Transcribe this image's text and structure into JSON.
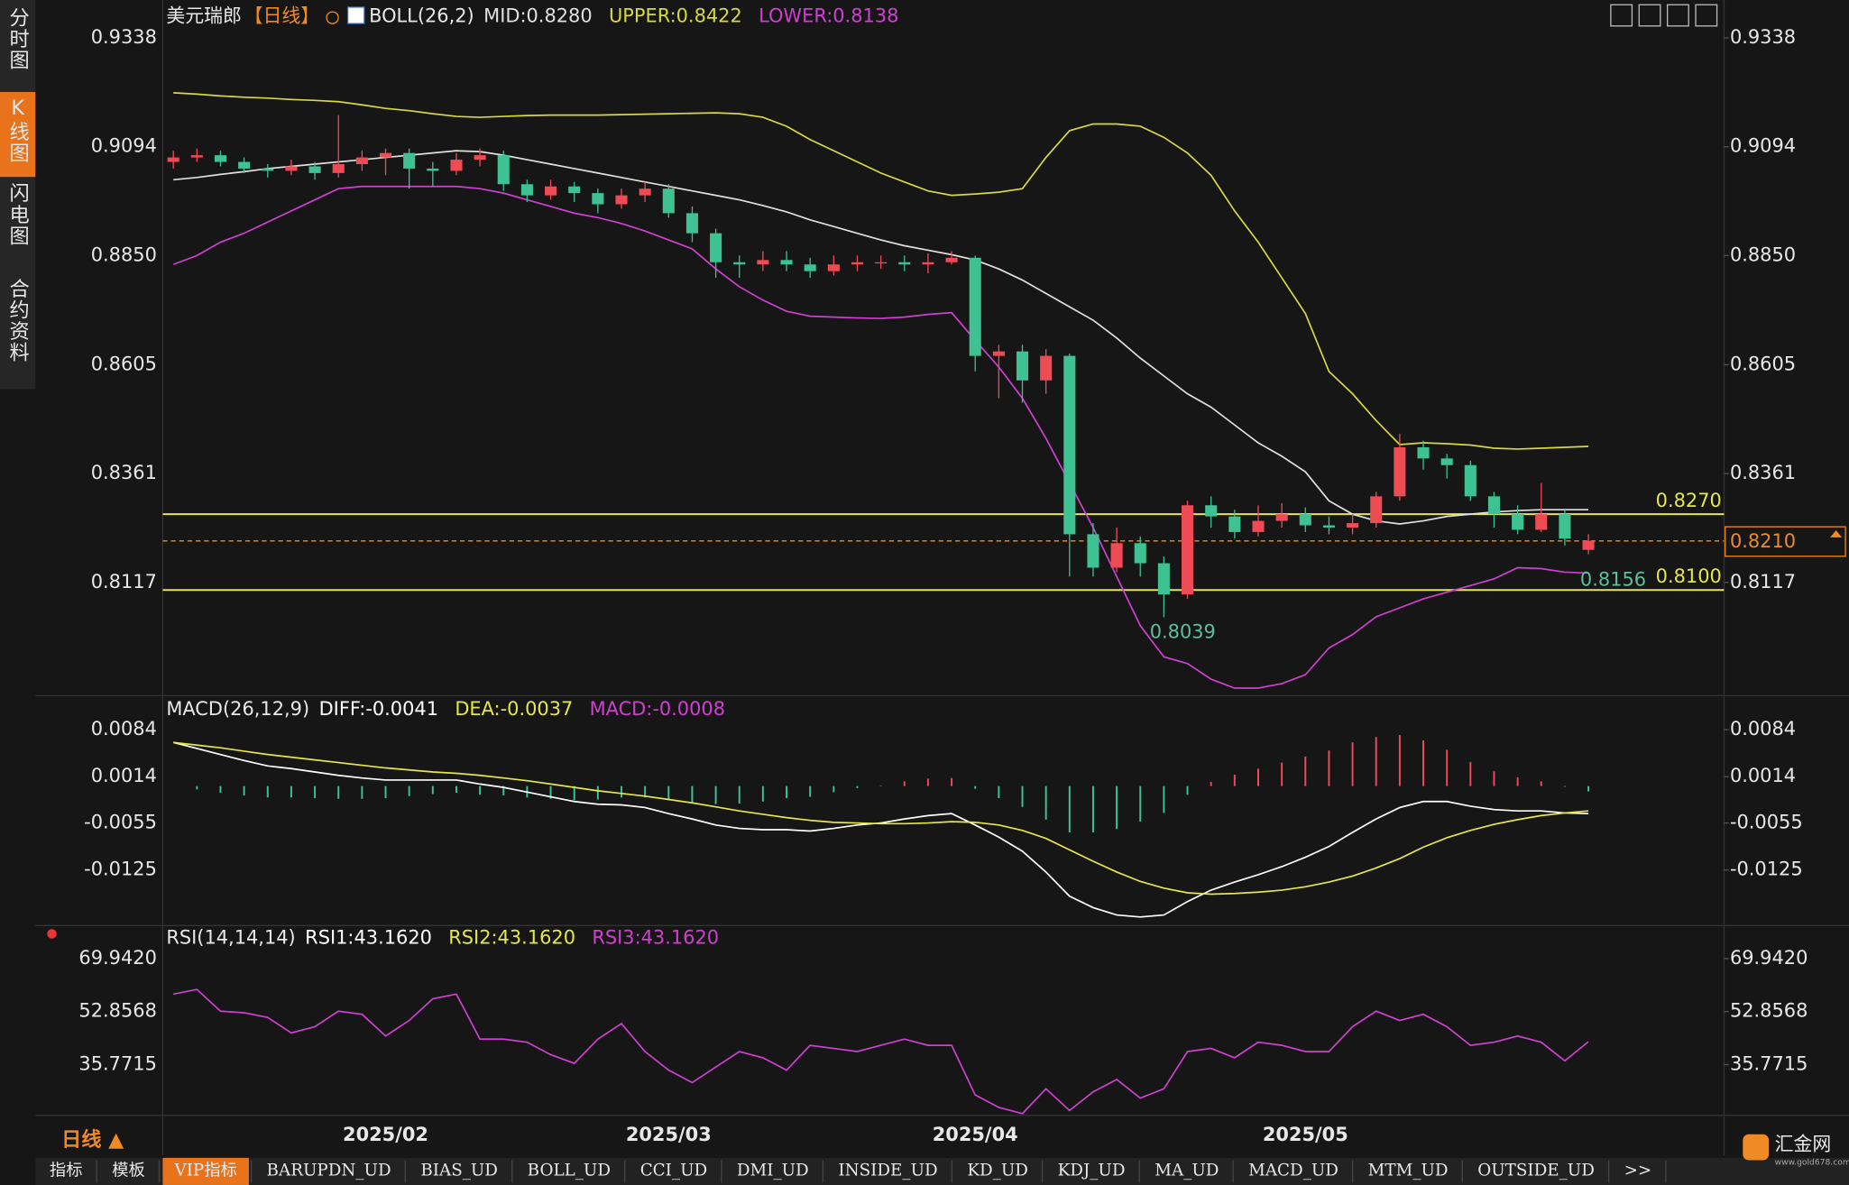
{
  "sidebar": {
    "tabs": [
      "分时图",
      "K线图",
      "闪电图",
      "合约资料"
    ]
  },
  "toolbar": {
    "period": "日线 ▲",
    "tabs": [
      "指标",
      "模板",
      "VIP指标",
      "BARUPDN_UD",
      "BIAS_UD",
      "BOLL_UD",
      "CCI_UD",
      "DMI_UD",
      "INSIDE_UD",
      "KD_UD",
      "KDJ_UD",
      "MA_UD",
      "MACD_UD",
      "MTM_UD",
      "OUTSIDE_UD",
      ">>"
    ]
  },
  "logo": {
    "name": "汇金网",
    "url": "www.gold678.com"
  },
  "chart_data": [
    {
      "type": "candlestick",
      "title": "美元瑞郎",
      "period": "【日线】",
      "indicator": "BOLL(26,2)",
      "categories": [
        null,
        null,
        null,
        null,
        null,
        null,
        null,
        null,
        null,
        "2025/02",
        null,
        null,
        null,
        null,
        null,
        null,
        null,
        null,
        null,
        null,
        null,
        "2025/03",
        null,
        null,
        null,
        null,
        null,
        null,
        null,
        null,
        null,
        null,
        null,
        null,
        "2025/04",
        null,
        null,
        null,
        null,
        null,
        null,
        null,
        null,
        null,
        null,
        null,
        null,
        null,
        "2025/05",
        null,
        null,
        null,
        null,
        null,
        null,
        null,
        null,
        null,
        null,
        null,
        null
      ],
      "open": [
        0.906,
        0.907,
        0.9075,
        0.906,
        0.9045,
        0.904,
        0.905,
        0.9035,
        0.9055,
        0.907,
        0.908,
        0.9045,
        0.904,
        0.9065,
        0.9075,
        0.901,
        0.8985,
        0.9005,
        0.899,
        0.8965,
        0.8985,
        0.9,
        0.8945,
        0.89,
        0.8835,
        0.883,
        0.884,
        0.883,
        0.8815,
        0.883,
        0.8835,
        0.8835,
        0.883,
        0.8835,
        0.8845,
        0.8625,
        0.8635,
        0.857,
        0.8625,
        0.8225,
        0.815,
        0.8205,
        0.816,
        0.809,
        0.829,
        0.8265,
        0.823,
        0.8255,
        0.827,
        0.8245,
        0.824,
        0.825,
        0.831,
        0.842,
        0.8395,
        0.838,
        0.831,
        0.827,
        0.8235,
        0.827,
        0.819
      ],
      "high": [
        0.9085,
        0.909,
        0.9085,
        0.907,
        0.9055,
        0.9065,
        0.906,
        0.9165,
        0.9085,
        0.909,
        0.909,
        0.906,
        0.908,
        0.909,
        0.9085,
        0.902,
        0.902,
        0.9015,
        0.9,
        0.9,
        0.9015,
        0.901,
        0.896,
        0.891,
        0.885,
        0.886,
        0.886,
        0.8845,
        0.885,
        0.885,
        0.885,
        0.885,
        0.8855,
        0.886,
        0.885,
        0.865,
        0.865,
        0.864,
        0.863,
        0.825,
        0.824,
        0.822,
        0.8175,
        0.83,
        0.831,
        0.828,
        0.829,
        0.8295,
        0.8285,
        0.8265,
        0.827,
        0.832,
        0.845,
        0.8435,
        0.8405,
        0.839,
        0.832,
        0.829,
        0.834,
        0.828,
        0.8225
      ],
      "low": [
        0.9045,
        0.906,
        0.905,
        0.9035,
        0.9025,
        0.903,
        0.902,
        0.9025,
        0.904,
        0.903,
        0.9,
        0.9005,
        0.903,
        0.905,
        0.8995,
        0.897,
        0.8975,
        0.897,
        0.8945,
        0.8955,
        0.897,
        0.8935,
        0.888,
        0.88,
        0.88,
        0.8815,
        0.8815,
        0.88,
        0.8805,
        0.8815,
        0.882,
        0.8815,
        0.881,
        0.883,
        0.859,
        0.853,
        0.852,
        0.854,
        0.813,
        0.813,
        0.814,
        0.813,
        0.8039,
        0.808,
        0.824,
        0.8215,
        0.822,
        0.824,
        0.823,
        0.8225,
        0.8225,
        0.824,
        0.83,
        0.837,
        0.835,
        0.83,
        0.824,
        0.8225,
        0.823,
        0.82,
        0.818
      ],
      "close": [
        0.907,
        0.9075,
        0.906,
        0.9045,
        0.904,
        0.905,
        0.9035,
        0.9055,
        0.907,
        0.908,
        0.9045,
        0.904,
        0.9065,
        0.9075,
        0.901,
        0.8985,
        0.9005,
        0.899,
        0.8965,
        0.8985,
        0.9,
        0.8945,
        0.89,
        0.8835,
        0.883,
        0.884,
        0.883,
        0.8815,
        0.883,
        0.8835,
        0.8835,
        0.883,
        0.8835,
        0.8845,
        0.8625,
        0.8635,
        0.857,
        0.8625,
        0.8225,
        0.815,
        0.8205,
        0.816,
        0.809,
        0.829,
        0.8265,
        0.823,
        0.8255,
        0.827,
        0.8245,
        0.824,
        0.825,
        0.831,
        0.842,
        0.8395,
        0.838,
        0.831,
        0.827,
        0.8235,
        0.827,
        0.8215,
        0.821
      ],
      "up_color": "#ee4b55",
      "down_color": "#3ec193",
      "series": [
        {
          "name": "MID:0.8280",
          "color": "#e0e0e0",
          "values": [
            0.902,
            0.9025,
            0.9032,
            0.9038,
            0.9045,
            0.905,
            0.9055,
            0.906,
            0.9065,
            0.907,
            0.9075,
            0.908,
            0.9085,
            0.9083,
            0.9075,
            0.9065,
            0.9055,
            0.9045,
            0.9035,
            0.9025,
            0.9015,
            0.9005,
            0.8995,
            0.8985,
            0.8975,
            0.8962,
            0.8948,
            0.893,
            0.8915,
            0.89,
            0.8885,
            0.8872,
            0.8862,
            0.8852,
            0.884,
            0.882,
            0.8795,
            0.8765,
            0.8735,
            0.8705,
            0.8665,
            0.862,
            0.858,
            0.854,
            0.851,
            0.847,
            0.843,
            0.84,
            0.8365,
            0.83,
            0.827,
            0.8255,
            0.8248,
            0.8255,
            0.8265,
            0.827,
            0.8275,
            0.8278,
            0.828,
            0.828,
            0.828
          ]
        },
        {
          "name": "UPPER:0.8422",
          "color": "#d8d840",
          "values": [
            0.9215,
            0.9212,
            0.9208,
            0.9205,
            0.9203,
            0.92,
            0.9198,
            0.9195,
            0.9188,
            0.918,
            0.9175,
            0.9168,
            0.9162,
            0.916,
            0.9162,
            0.9164,
            0.9165,
            0.9165,
            0.9165,
            0.9166,
            0.9167,
            0.9168,
            0.9169,
            0.917,
            0.9168,
            0.916,
            0.914,
            0.911,
            0.9085,
            0.906,
            0.9035,
            0.9015,
            0.8995,
            0.8985,
            0.8988,
            0.8992,
            0.9,
            0.907,
            0.913,
            0.9145,
            0.9145,
            0.914,
            0.9115,
            0.908,
            0.903,
            0.895,
            0.888,
            0.88,
            0.872,
            0.859,
            0.854,
            0.848,
            0.8426,
            0.843,
            0.8428,
            0.8425,
            0.8418,
            0.8416,
            0.8418,
            0.842,
            0.8422
          ]
        },
        {
          "name": "LOWER:0.8138",
          "color": "#d040d0",
          "values": [
            0.883,
            0.885,
            0.888,
            0.89,
            0.8925,
            0.895,
            0.8975,
            0.9,
            0.9005,
            0.9005,
            0.9005,
            0.9005,
            0.9005,
            0.9,
            0.899,
            0.8975,
            0.896,
            0.8945,
            0.8935,
            0.8922,
            0.8905,
            0.8885,
            0.8865,
            0.882,
            0.878,
            0.875,
            0.8725,
            0.8714,
            0.8712,
            0.871,
            0.8709,
            0.8712,
            0.8718,
            0.8722,
            0.866,
            0.86,
            0.853,
            0.844,
            0.834,
            0.824,
            0.813,
            0.802,
            0.795,
            0.7935,
            0.79,
            0.788,
            0.788,
            0.789,
            0.791,
            0.797,
            0.8,
            0.804,
            0.806,
            0.808,
            0.8095,
            0.811,
            0.8125,
            0.815,
            0.8148,
            0.814,
            0.8138
          ]
        }
      ],
      "ylim": [
        0.7863,
        0.9423
      ],
      "yticks": [
        0.9338,
        0.9094,
        {
          "value": 0.885,
          "label": "0.8850"
        },
        0.8605,
        0.8361,
        0.8117
      ],
      "levels": [
        {
          "value": 0.827,
          "label": "0.8270"
        },
        {
          "value": 0.81,
          "label": "0.8100"
        }
      ],
      "level_color": "#e6e64a",
      "last_price": {
        "value": 0.821,
        "label": "0.8210"
      },
      "last_color": "#f08a24",
      "annotations": [
        0.8039,
        0.8156
      ],
      "annotation_color": "#5dbf9c"
    },
    {
      "type": "macd",
      "indicator": "MACD(26,12,9)",
      "up_color": "#ee4b55",
      "down_color": "#3ec193",
      "series": [
        {
          "name": "DIFF:-0.0041",
          "color": "#ffffff",
          "values": [
            0.0065,
            0.0056,
            0.0047,
            0.0038,
            0.003,
            0.0026,
            0.0021,
            0.0016,
            0.0012,
            0.0009,
            0.0009,
            0.0009,
            0.0009,
            0.0003,
            -0.0002,
            -0.0009,
            -0.0016,
            -0.0023,
            -0.0027,
            -0.0028,
            -0.0032,
            -0.0041,
            -0.0049,
            -0.0058,
            -0.0063,
            -0.0065,
            -0.0065,
            -0.0067,
            -0.0063,
            -0.0058,
            -0.0055,
            -0.0049,
            -0.0044,
            -0.0041,
            -0.0058,
            -0.0076,
            -0.0097,
            -0.0128,
            -0.0164,
            -0.0181,
            -0.0192,
            -0.0195,
            -0.0192,
            -0.0172,
            -0.0155,
            -0.0143,
            -0.0132,
            -0.012,
            -0.0106,
            -0.009,
            -0.0069,
            -0.0049,
            -0.0032,
            -0.0023,
            -0.0023,
            -0.003,
            -0.0035,
            -0.0037,
            -0.0037,
            -0.004,
            -0.0041
          ]
        },
        {
          "name": "DEA:-0.0037",
          "color": "#e6e64a",
          "values": [
            0.0065,
            0.0061,
            0.0057,
            0.0052,
            0.0047,
            0.0043,
            0.0039,
            0.0035,
            0.0031,
            0.0027,
            0.0024,
            0.0021,
            0.0019,
            0.0016,
            0.0012,
            0.0008,
            0.0003,
            -0.0002,
            -0.0007,
            -0.0011,
            -0.0015,
            -0.002,
            -0.0025,
            -0.0031,
            -0.0037,
            -0.0042,
            -0.0047,
            -0.0051,
            -0.0054,
            -0.0055,
            -0.0056,
            -0.0056,
            -0.0055,
            -0.0053,
            -0.0054,
            -0.0058,
            -0.0066,
            -0.0078,
            -0.0095,
            -0.0112,
            -0.0128,
            -0.0142,
            -0.0152,
            -0.0159,
            -0.0161,
            -0.016,
            -0.0158,
            -0.0155,
            -0.015,
            -0.0143,
            -0.0134,
            -0.0122,
            -0.0108,
            -0.0091,
            -0.0077,
            -0.0066,
            -0.0057,
            -0.005,
            -0.0044,
            -0.004,
            -0.0037
          ]
        },
        {
          "name": "MACD:-0.0008",
          "color": "#d040d0",
          "bar": true,
          "values": [
            0,
            -0.0005,
            -0.001,
            -0.0014,
            -0.0017,
            -0.0017,
            -0.0018,
            -0.0019,
            -0.0019,
            -0.0018,
            -0.0015,
            -0.0012,
            -0.001,
            -0.0013,
            -0.0014,
            -0.0017,
            -0.0019,
            -0.0021,
            -0.002,
            -0.0017,
            -0.0017,
            -0.0021,
            -0.0024,
            -0.0027,
            -0.0026,
            -0.0023,
            -0.0018,
            -0.0016,
            -0.0009,
            -0.0003,
            0.0001,
            0.0007,
            0.0011,
            0.0012,
            -0.0004,
            -0.0018,
            -0.0031,
            -0.005,
            -0.0069,
            -0.0069,
            -0.0064,
            -0.0053,
            -0.004,
            -0.0013,
            0.0006,
            0.0017,
            0.0026,
            0.0035,
            0.0044,
            0.0053,
            0.0065,
            0.0073,
            0.0076,
            0.0068,
            0.0054,
            0.0036,
            0.0022,
            0.0013,
            0.0007,
            -0.0001,
            -0.0008
          ]
        }
      ],
      "ylim": [
        -0.0199,
        0.0096
      ],
      "yticks": [
        0.0084,
        0.0014,
        -0.0055,
        -0.0125
      ]
    },
    {
      "type": "line",
      "indicator": "RSI(14,14,14)",
      "series": [
        {
          "name": "RSI1:43.1620",
          "color": "#ffffff"
        },
        {
          "name": "RSI2:43.1620",
          "color": "#e6e64a"
        },
        {
          "name": "RSI3:43.1620",
          "color": "#d040d0",
          "values": [
            58.5,
            60,
            53,
            52.5,
            51,
            46,
            48,
            53,
            52,
            45,
            50,
            57,
            58.5,
            44,
            44,
            43,
            39,
            36.2,
            44,
            49,
            40,
            34,
            30,
            35,
            40,
            38,
            34,
            42,
            41,
            40,
            42,
            44,
            42,
            42,
            26,
            22,
            20,
            28,
            21,
            27,
            31,
            25,
            28,
            40,
            41,
            38,
            43,
            42,
            40,
            40,
            48,
            53,
            50,
            52,
            48,
            42,
            43,
            45,
            43,
            37,
            43.162
          ]
        }
      ],
      "ylim": [
        19.8,
        72.6
      ],
      "yticks": [
        {
          "value": 69.942,
          "label": "69.9420"
        },
        52.8568,
        35.7715
      ]
    }
  ]
}
